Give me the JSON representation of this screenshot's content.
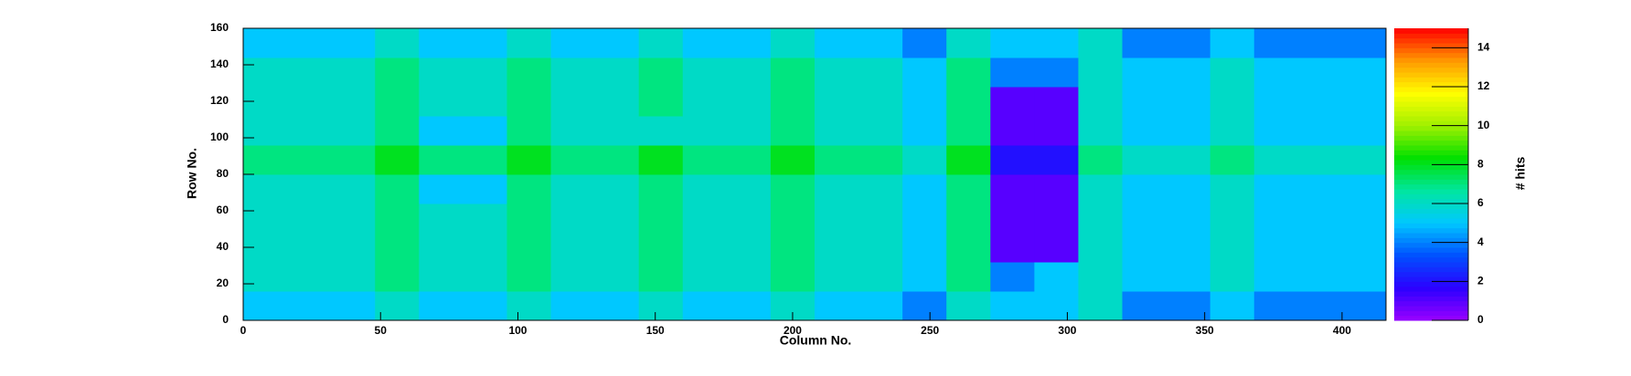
{
  "chart_data": {
    "type": "heatmap",
    "xlabel": "Column No.",
    "ylabel": "Row No.",
    "zlabel": "# hits",
    "x": [
      0,
      16,
      32,
      48,
      64,
      80,
      96,
      112,
      128,
      144,
      160,
      176,
      192,
      208,
      224,
      240,
      256,
      272,
      288,
      304,
      320,
      336,
      352,
      368,
      384,
      400,
      416
    ],
    "y": [
      0,
      16,
      32,
      48,
      64,
      80,
      96,
      112,
      128,
      144,
      160
    ],
    "z": [
      [
        5,
        5,
        5,
        6,
        5,
        5,
        6,
        5,
        5,
        6,
        5,
        5,
        6,
        5,
        5,
        4,
        6,
        5,
        5,
        6,
        4,
        4,
        5,
        4,
        4,
        4
      ],
      [
        6,
        6,
        6,
        7,
        6,
        6,
        7,
        6,
        6,
        7,
        6,
        6,
        7,
        6,
        6,
        5,
        7,
        4,
        5,
        6,
        5,
        5,
        6,
        5,
        5,
        5
      ],
      [
        6,
        6,
        6,
        7,
        6,
        6,
        7,
        6,
        6,
        7,
        6,
        6,
        7,
        6,
        6,
        5,
        7,
        1,
        1,
        6,
        5,
        5,
        6,
        5,
        5,
        5
      ],
      [
        6,
        6,
        6,
        7,
        6,
        6,
        7,
        6,
        6,
        7,
        6,
        6,
        7,
        6,
        6,
        5,
        7,
        1,
        1,
        6,
        5,
        5,
        6,
        5,
        5,
        5
      ],
      [
        6,
        6,
        6,
        7,
        5,
        5,
        7,
        6,
        6,
        7,
        6,
        6,
        7,
        6,
        6,
        5,
        7,
        1,
        1,
        6,
        5,
        5,
        6,
        5,
        5,
        5
      ],
      [
        7,
        7,
        7,
        8,
        7,
        7,
        8,
        7,
        7,
        8,
        7,
        7,
        8,
        7,
        7,
        6,
        8,
        2,
        2,
        7,
        6,
        6,
        7,
        6,
        6,
        6
      ],
      [
        6,
        6,
        6,
        7,
        5,
        5,
        7,
        6,
        6,
        6,
        6,
        6,
        7,
        6,
        6,
        5,
        7,
        1,
        1,
        6,
        5,
        5,
        6,
        5,
        5,
        5
      ],
      [
        6,
        6,
        6,
        7,
        6,
        6,
        7,
        6,
        6,
        7,
        6,
        6,
        7,
        6,
        6,
        5,
        7,
        1,
        1,
        6,
        5,
        5,
        6,
        5,
        5,
        5
      ],
      [
        6,
        6,
        6,
        7,
        6,
        6,
        7,
        6,
        6,
        7,
        6,
        6,
        7,
        6,
        6,
        5,
        7,
        4,
        4,
        6,
        5,
        5,
        6,
        5,
        5,
        5
      ],
      [
        5,
        5,
        5,
        6,
        5,
        5,
        6,
        5,
        5,
        6,
        5,
        5,
        6,
        5,
        5,
        4,
        6,
        5,
        5,
        6,
        4,
        4,
        5,
        4,
        4,
        4
      ]
    ],
    "xlim": [
      0,
      416
    ],
    "ylim": [
      0,
      160
    ],
    "zlim": [
      0,
      15
    ],
    "xticks": [
      0,
      50,
      100,
      150,
      200,
      250,
      300,
      350,
      400
    ],
    "yticks": [
      0,
      20,
      40,
      60,
      80,
      100,
      120,
      140,
      160
    ],
    "zticks": [
      0,
      2,
      4,
      6,
      8,
      10,
      12,
      14
    ],
    "colorscale": [
      "#9a00ff",
      "#2b00ff",
      "#0050ff",
      "#00c8ff",
      "#00e6a0",
      "#00e000",
      "#a0f000",
      "#ffff00",
      "#ff9900",
      "#ff0000"
    ]
  }
}
